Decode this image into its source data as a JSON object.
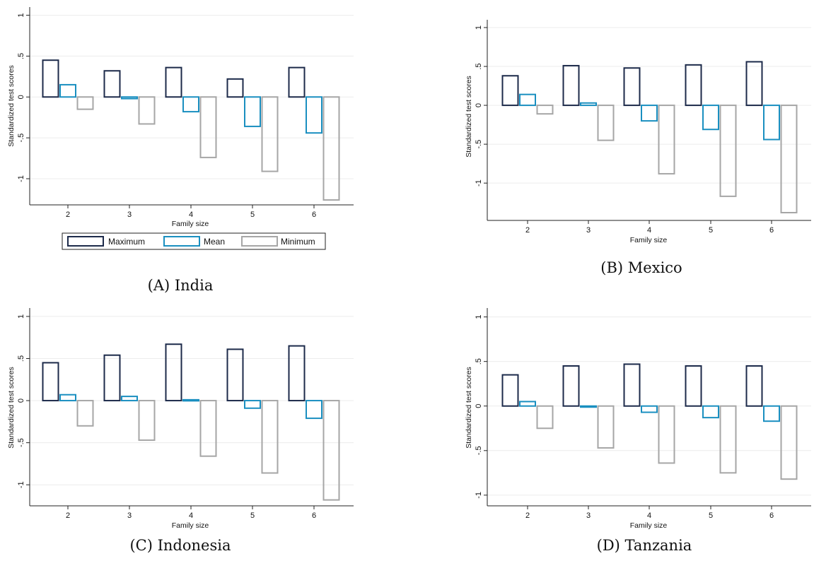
{
  "colors": {
    "Maximum": "#1c2a4a",
    "Mean": "#1a8fc0",
    "Minimum": "#a6a6a6",
    "grid": "#ececec",
    "axis": "#222222"
  },
  "legend": [
    {
      "name": "Maximum",
      "label": "Maximum"
    },
    {
      "name": "Mean",
      "label": "Mean"
    },
    {
      "name": "Minimum",
      "label": "Minimum"
    }
  ],
  "chart_data": [
    {
      "type": "bar",
      "caption": "(A) India",
      "xlabel": "Family size",
      "ylabel": "Standardized test scores",
      "categories": [
        "2",
        "3",
        "4",
        "5",
        "6"
      ],
      "yticks": [
        "1",
        ".5",
        "0",
        "-.5",
        "-1"
      ],
      "ytick_values": [
        1,
        0.5,
        0,
        -0.5,
        -1
      ],
      "ylim": [
        -1.32,
        1.1
      ],
      "grid": true,
      "legend_position": "bottom",
      "series": [
        {
          "name": "Maximum",
          "values": [
            0.45,
            0.32,
            0.36,
            0.22,
            0.36
          ]
        },
        {
          "name": "Mean",
          "values": [
            0.15,
            -0.02,
            -0.18,
            -0.36,
            -0.44
          ]
        },
        {
          "name": "Minimum",
          "values": [
            -0.15,
            -0.33,
            -0.74,
            -0.91,
            -1.26
          ]
        }
      ]
    },
    {
      "type": "bar",
      "caption": "(B) Mexico",
      "xlabel": "Family size",
      "ylabel": "Standardized test scores",
      "categories": [
        "2",
        "3",
        "4",
        "5",
        "6"
      ],
      "yticks": [
        "1",
        ".5",
        "0",
        "-.5",
        "-1"
      ],
      "ytick_values": [
        1,
        0.5,
        0,
        -0.5,
        -1
      ],
      "ylim": [
        -1.48,
        1.1
      ],
      "grid": true,
      "series": [
        {
          "name": "Maximum",
          "values": [
            0.38,
            0.51,
            0.48,
            0.52,
            0.56
          ]
        },
        {
          "name": "Mean",
          "values": [
            0.14,
            0.03,
            -0.2,
            -0.31,
            -0.44
          ]
        },
        {
          "name": "Minimum",
          "values": [
            -0.11,
            -0.45,
            -0.88,
            -1.17,
            -1.38
          ]
        }
      ]
    },
    {
      "type": "bar",
      "caption": "(C) Indonesia",
      "xlabel": "Family size",
      "ylabel": "Standardized test scores",
      "categories": [
        "2",
        "3",
        "4",
        "5",
        "6"
      ],
      "yticks": [
        "1",
        ".5",
        "0",
        "-.5",
        "-1"
      ],
      "ytick_values": [
        1,
        0.5,
        0,
        -0.5,
        -1
      ],
      "ylim": [
        -1.25,
        1.1
      ],
      "grid": true,
      "series": [
        {
          "name": "Maximum",
          "values": [
            0.45,
            0.54,
            0.67,
            0.61,
            0.65
          ]
        },
        {
          "name": "Mean",
          "values": [
            0.07,
            0.05,
            0.01,
            -0.09,
            -0.21
          ]
        },
        {
          "name": "Minimum",
          "values": [
            -0.3,
            -0.47,
            -0.66,
            -0.86,
            -1.18
          ]
        }
      ]
    },
    {
      "type": "bar",
      "caption": "(D) Tanzania",
      "xlabel": "Family size",
      "ylabel": "Standardized test scores",
      "categories": [
        "2",
        "3",
        "4",
        "5",
        "6"
      ],
      "yticks": [
        "1",
        ".5",
        "0",
        "-.5",
        "-1"
      ],
      "ytick_values": [
        1,
        0.5,
        0,
        -0.5,
        -1
      ],
      "ylim": [
        -1.12,
        1.1
      ],
      "grid": true,
      "series": [
        {
          "name": "Maximum",
          "values": [
            0.35,
            0.45,
            0.47,
            0.45,
            0.45
          ]
        },
        {
          "name": "Mean",
          "values": [
            0.05,
            0.0,
            -0.07,
            -0.13,
            -0.17
          ]
        },
        {
          "name": "Minimum",
          "values": [
            -0.25,
            -0.47,
            -0.64,
            -0.75,
            -0.82
          ]
        }
      ]
    }
  ]
}
